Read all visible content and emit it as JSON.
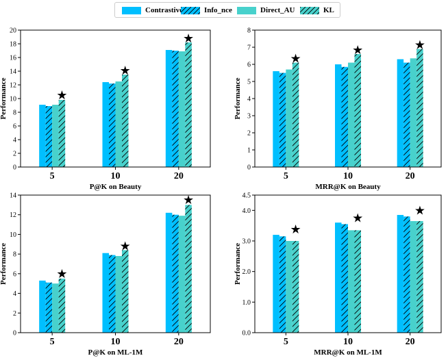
{
  "legend": {
    "entries": [
      {
        "label": "Contrastive",
        "color": "#00bfff",
        "hatch": false
      },
      {
        "label": "Info_nce",
        "color": "#00bfff",
        "hatch": true
      },
      {
        "label": "Direct_AU",
        "color": "#48d1cc",
        "hatch": false
      },
      {
        "label": "KL",
        "color": "#48d1cc",
        "hatch": true
      }
    ]
  },
  "chart_data": [
    {
      "type": "bar",
      "title": "",
      "xlabel": "P@K on Beauty",
      "ylabel": "Performance",
      "categories": [
        "5",
        "10",
        "20"
      ],
      "ylim": [
        0,
        20
      ],
      "yticks": [
        "0",
        "2",
        "4",
        "6",
        "8",
        "10",
        "12",
        "14",
        "16",
        "18",
        "20"
      ],
      "series": [
        {
          "name": "Contrastive",
          "values": [
            9.1,
            12.4,
            17.1
          ]
        },
        {
          "name": "Info_nce",
          "values": [
            8.9,
            12.2,
            17.0
          ]
        },
        {
          "name": "Direct_AU",
          "values": [
            9.1,
            12.5,
            16.9
          ]
        },
        {
          "name": "KL",
          "values": [
            9.8,
            13.5,
            18.2
          ]
        }
      ],
      "best_markers": [
        {
          "category": "5",
          "value": 10.5
        },
        {
          "category": "10",
          "value": 14.1
        },
        {
          "category": "20",
          "value": 18.8
        }
      ],
      "marker_glyph": "★"
    },
    {
      "type": "bar",
      "title": "",
      "xlabel": "MRR@K on Beauty",
      "ylabel": "Performance",
      "categories": [
        "5",
        "10",
        "20"
      ],
      "ylim": [
        0,
        8
      ],
      "yticks": [
        "0",
        "1",
        "2",
        "3",
        "4",
        "5",
        "6",
        "7",
        "8"
      ],
      "series": [
        {
          "name": "Contrastive",
          "values": [
            5.6,
            6.0,
            6.3
          ]
        },
        {
          "name": "Info_nce",
          "values": [
            5.5,
            5.85,
            6.1
          ]
        },
        {
          "name": "Direct_AU",
          "values": [
            5.7,
            6.1,
            6.35
          ]
        },
        {
          "name": "KL",
          "values": [
            6.1,
            6.6,
            6.9
          ]
        }
      ],
      "best_markers": [
        {
          "category": "5",
          "value": 6.35
        },
        {
          "category": "10",
          "value": 6.85
        },
        {
          "category": "20",
          "value": 7.15
        }
      ],
      "marker_glyph": "★"
    },
    {
      "type": "bar",
      "title": "",
      "xlabel": "P@K on ML-1M",
      "ylabel": "Performance",
      "categories": [
        "5",
        "10",
        "20"
      ],
      "ylim": [
        0,
        14
      ],
      "yticks": [
        "0",
        "2",
        "4",
        "6",
        "8",
        "10",
        "12",
        "14"
      ],
      "series": [
        {
          "name": "Contrastive",
          "values": [
            5.3,
            8.1,
            12.2
          ]
        },
        {
          "name": "Info_nce",
          "values": [
            5.1,
            7.9,
            12.0
          ]
        },
        {
          "name": "Direct_AU",
          "values": [
            5.0,
            7.8,
            11.9
          ]
        },
        {
          "name": "KL",
          "values": [
            5.5,
            8.4,
            13.0
          ]
        }
      ],
      "best_markers": [
        {
          "category": "5",
          "value": 6.0
        },
        {
          "category": "10",
          "value": 8.8
        },
        {
          "category": "20",
          "value": 13.5
        }
      ],
      "marker_glyph": "★"
    },
    {
      "type": "bar",
      "title": "",
      "xlabel": "MRR@K on ML-1M",
      "ylabel": "Performance",
      "categories": [
        "5",
        "10",
        "20"
      ],
      "ylim": [
        0,
        4.5
      ],
      "yticks": [
        "0.0",
        "1.0",
        "2.0",
        "3.0",
        "4.0",
        "4.5"
      ],
      "ytick_values": [
        0,
        1,
        2,
        3,
        4,
        4.5
      ],
      "series": [
        {
          "name": "Contrastive",
          "values": [
            3.2,
            3.6,
            3.85
          ]
        },
        {
          "name": "Info_nce",
          "values": [
            3.15,
            3.55,
            3.8
          ]
        },
        {
          "name": "Direct_AU",
          "values": [
            3.0,
            3.35,
            3.65
          ]
        },
        {
          "name": "KL",
          "values": [
            3.0,
            3.35,
            3.65
          ]
        }
      ],
      "best_markers": [
        {
          "category": "5",
          "value": 3.38
        },
        {
          "category": "10",
          "value": 3.75
        },
        {
          "category": "20",
          "value": 4.0
        }
      ],
      "marker_glyph": "★"
    }
  ]
}
